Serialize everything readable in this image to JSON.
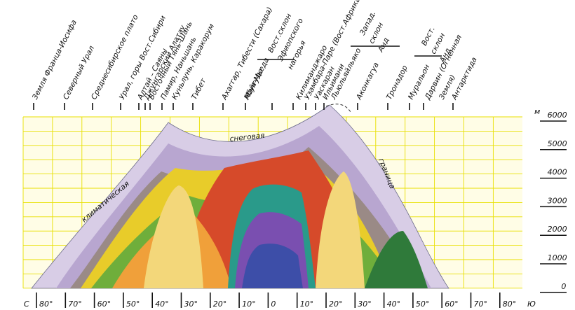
{
  "unit_label": "м",
  "elevation_ticks": [
    "6000",
    "5000",
    "4000",
    "3000",
    "2000",
    "1000",
    "0"
  ],
  "lat_edge_left": "С",
  "lat_edge_right": "Ю",
  "latitude_ticks": [
    "80°",
    "70°",
    "60°",
    "50°",
    "40°",
    "30°",
    "20°",
    "10°",
    "0",
    "10°",
    "20°",
    "30°",
    "40°",
    "50°",
    "60°",
    "70°",
    "80°"
  ],
  "curve_labels": {
    "snow": "снеговая",
    "climatic": "климатическая",
    "boundary": "граница"
  },
  "locations": [
    "Земля Франца-Иосифа",
    "Северный Урал",
    "Среднесибирское плато",
    "Урал, горы Вост.Сибири",
    "Алтай – Саяны",
    "Джунгарский Алатау",
    "Восточный Тянь-Шань",
    "Памир, Наньшань",
    "Куньлунь, Каракорум",
    "Тибет",
    "Ахаггар, Тибести (Сахара)",
    "Абуя-Мьеда",
    "Майгудо",
    "Вост.склон",
    "Эфиопского",
    "нагорья",
    "Килиманджаро",
    "Узамбара-Паре (Вост.Африка)",
    "Уаскаран",
    "Ильимани",
    "Льюльяйльяко",
    "Запад.",
    "склон",
    "Анд",
    "Аконкагуа",
    "Тронадор",
    "Вост.",
    "склон",
    "Анд",
    "Муральон",
    "Дарвин (Огненная",
    "Земля)",
    "Антарктида"
  ]
}
